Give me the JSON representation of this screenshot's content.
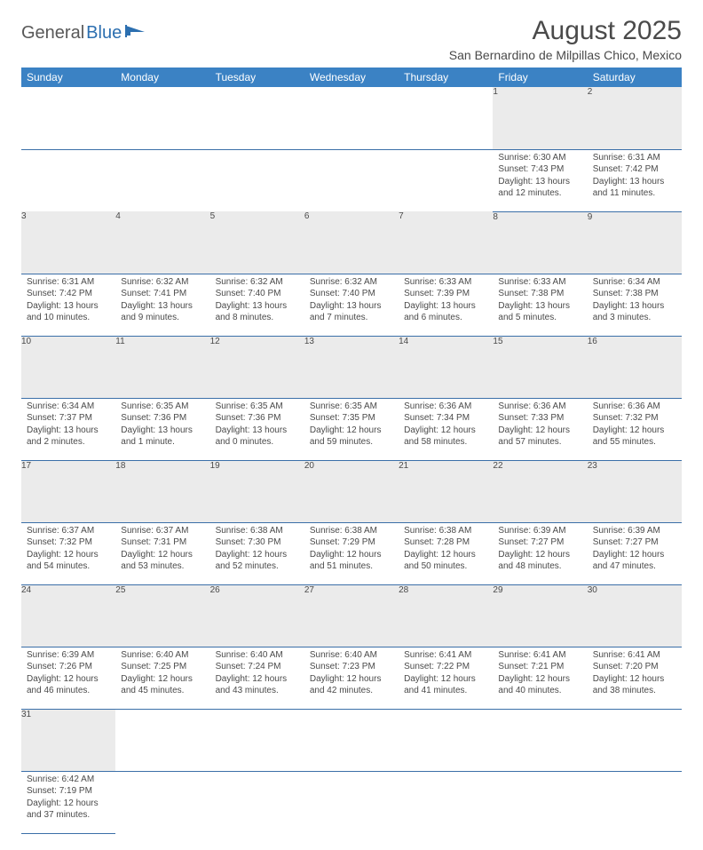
{
  "logo": {
    "text1": "General",
    "text2": "Blue"
  },
  "title": "August 2025",
  "location": "San Bernardino de Milpillas Chico, Mexico",
  "colors": {
    "header_bg": "#3b82c4",
    "header_fg": "#ffffff",
    "daynum_bg": "#ebebeb",
    "row_border": "#3b6fa8",
    "text": "#4a4a4a"
  },
  "weekdays": [
    "Sunday",
    "Monday",
    "Tuesday",
    "Wednesday",
    "Thursday",
    "Friday",
    "Saturday"
  ],
  "weeks": [
    [
      null,
      null,
      null,
      null,
      null,
      {
        "n": "1",
        "sr": "6:30 AM",
        "ss": "7:43 PM",
        "dl": "13 hours and 12 minutes."
      },
      {
        "n": "2",
        "sr": "6:31 AM",
        "ss": "7:42 PM",
        "dl": "13 hours and 11 minutes."
      }
    ],
    [
      {
        "n": "3",
        "sr": "6:31 AM",
        "ss": "7:42 PM",
        "dl": "13 hours and 10 minutes."
      },
      {
        "n": "4",
        "sr": "6:32 AM",
        "ss": "7:41 PM",
        "dl": "13 hours and 9 minutes."
      },
      {
        "n": "5",
        "sr": "6:32 AM",
        "ss": "7:40 PM",
        "dl": "13 hours and 8 minutes."
      },
      {
        "n": "6",
        "sr": "6:32 AM",
        "ss": "7:40 PM",
        "dl": "13 hours and 7 minutes."
      },
      {
        "n": "7",
        "sr": "6:33 AM",
        "ss": "7:39 PM",
        "dl": "13 hours and 6 minutes."
      },
      {
        "n": "8",
        "sr": "6:33 AM",
        "ss": "7:38 PM",
        "dl": "13 hours and 5 minutes."
      },
      {
        "n": "9",
        "sr": "6:34 AM",
        "ss": "7:38 PM",
        "dl": "13 hours and 3 minutes."
      }
    ],
    [
      {
        "n": "10",
        "sr": "6:34 AM",
        "ss": "7:37 PM",
        "dl": "13 hours and 2 minutes."
      },
      {
        "n": "11",
        "sr": "6:35 AM",
        "ss": "7:36 PM",
        "dl": "13 hours and 1 minute."
      },
      {
        "n": "12",
        "sr": "6:35 AM",
        "ss": "7:36 PM",
        "dl": "13 hours and 0 minutes."
      },
      {
        "n": "13",
        "sr": "6:35 AM",
        "ss": "7:35 PM",
        "dl": "12 hours and 59 minutes."
      },
      {
        "n": "14",
        "sr": "6:36 AM",
        "ss": "7:34 PM",
        "dl": "12 hours and 58 minutes."
      },
      {
        "n": "15",
        "sr": "6:36 AM",
        "ss": "7:33 PM",
        "dl": "12 hours and 57 minutes."
      },
      {
        "n": "16",
        "sr": "6:36 AM",
        "ss": "7:32 PM",
        "dl": "12 hours and 55 minutes."
      }
    ],
    [
      {
        "n": "17",
        "sr": "6:37 AM",
        "ss": "7:32 PM",
        "dl": "12 hours and 54 minutes."
      },
      {
        "n": "18",
        "sr": "6:37 AM",
        "ss": "7:31 PM",
        "dl": "12 hours and 53 minutes."
      },
      {
        "n": "19",
        "sr": "6:38 AM",
        "ss": "7:30 PM",
        "dl": "12 hours and 52 minutes."
      },
      {
        "n": "20",
        "sr": "6:38 AM",
        "ss": "7:29 PM",
        "dl": "12 hours and 51 minutes."
      },
      {
        "n": "21",
        "sr": "6:38 AM",
        "ss": "7:28 PM",
        "dl": "12 hours and 50 minutes."
      },
      {
        "n": "22",
        "sr": "6:39 AM",
        "ss": "7:27 PM",
        "dl": "12 hours and 48 minutes."
      },
      {
        "n": "23",
        "sr": "6:39 AM",
        "ss": "7:27 PM",
        "dl": "12 hours and 47 minutes."
      }
    ],
    [
      {
        "n": "24",
        "sr": "6:39 AM",
        "ss": "7:26 PM",
        "dl": "12 hours and 46 minutes."
      },
      {
        "n": "25",
        "sr": "6:40 AM",
        "ss": "7:25 PM",
        "dl": "12 hours and 45 minutes."
      },
      {
        "n": "26",
        "sr": "6:40 AM",
        "ss": "7:24 PM",
        "dl": "12 hours and 43 minutes."
      },
      {
        "n": "27",
        "sr": "6:40 AM",
        "ss": "7:23 PM",
        "dl": "12 hours and 42 minutes."
      },
      {
        "n": "28",
        "sr": "6:41 AM",
        "ss": "7:22 PM",
        "dl": "12 hours and 41 minutes."
      },
      {
        "n": "29",
        "sr": "6:41 AM",
        "ss": "7:21 PM",
        "dl": "12 hours and 40 minutes."
      },
      {
        "n": "30",
        "sr": "6:41 AM",
        "ss": "7:20 PM",
        "dl": "12 hours and 38 minutes."
      }
    ],
    [
      {
        "n": "31",
        "sr": "6:42 AM",
        "ss": "7:19 PM",
        "dl": "12 hours and 37 minutes."
      },
      null,
      null,
      null,
      null,
      null,
      null
    ]
  ],
  "labels": {
    "sunrise": "Sunrise:",
    "sunset": "Sunset:",
    "daylight": "Daylight:"
  }
}
